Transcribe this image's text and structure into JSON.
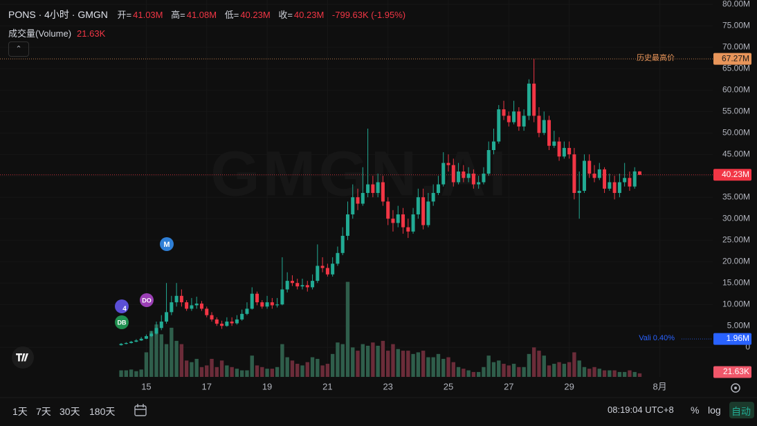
{
  "header": {
    "title": "PONS · 4小时 · GMGN",
    "open_label": "开=",
    "open": "41.03M",
    "high_label": "高=",
    "high": "41.08M",
    "low_label": "低=",
    "low": "40.23M",
    "close_label": "收=",
    "close": "40.23M",
    "change": "-799.63K (-1.95%)",
    "volume_title": "成交量(Volume)",
    "volume_value": "21.63K"
  },
  "watermark": "GMGN.AI",
  "events": [
    {
      "label": "M"
    },
    {
      "label": "DO"
    },
    {
      "label": "4"
    },
    {
      "label": "DB"
    }
  ],
  "toolbar": {
    "ranges": [
      "1天",
      "7天",
      "30天",
      "180天"
    ],
    "clock": "08:19:04 UTC+8",
    "percent": "%",
    "log": "log",
    "auto": "自动"
  },
  "chart_data": {
    "type": "candlestick",
    "colors": {
      "up": "#22ab94",
      "down": "#f23645",
      "volume_up": "#2f5e4b",
      "volume_down": "#6b2c39"
    },
    "xlim": [
      -24.06,
      117.5
    ],
    "xticks": [
      {
        "value": 5,
        "label": "15"
      },
      17,
      {
        "value": 29,
        "label": "19"
      },
      {
        "value": 41,
        "label": "21"
      },
      {
        "value": 53,
        "label": "23"
      },
      {
        "value": 65,
        "label": "25"
      },
      {
        "value": 77,
        "label": "27"
      },
      {
        "value": 89,
        "label": "29"
      },
      {
        "value": 107,
        "label": "8月"
      }
    ],
    "ylim": [
      -6.9,
      81
    ],
    "yticks": [
      0,
      {
        "value": 5,
        "label": "5.00M"
      },
      {
        "value": 10,
        "label": "10.00M"
      },
      {
        "value": 15,
        "label": "15.00M"
      },
      {
        "value": 20,
        "label": "20.00M"
      },
      {
        "value": 25,
        "label": "25.00M"
      },
      {
        "value": 30,
        "label": "30.00M"
      },
      {
        "value": 35,
        "label": "35.00M"
      },
      {
        "value": 40,
        "label": "40.00M"
      },
      {
        "value": 45,
        "label": "45.00M"
      },
      {
        "value": 50,
        "label": "50.00M"
      },
      {
        "value": 55,
        "label": "55.00M"
      },
      {
        "value": 60,
        "label": "60.00M"
      },
      {
        "value": 65,
        "label": "65.00M"
      },
      {
        "value": 70,
        "label": "70.00M"
      },
      {
        "value": 75,
        "label": "75.00M"
      },
      {
        "value": 80,
        "label": "80.00M"
      }
    ],
    "volume_ylim": [
      0,
      2300
    ],
    "grid": true,
    "open": [
      0.5,
      0.8,
      1.0,
      1.3,
      1.6,
      2.0,
      2.6,
      3.2,
      4.5,
      6.0,
      8.2,
      10.5,
      12.0,
      10.5,
      9.0,
      9.8,
      10.2,
      9.0,
      7.5,
      6.5,
      5.5,
      5.0,
      6.0,
      5.6,
      6.5,
      7.8,
      9.0,
      12.5,
      10.5,
      9.5,
      10.5,
      9.8,
      10.0,
      13.5,
      15.5,
      15.0,
      14.2,
      14.5,
      14.0,
      15.5,
      19.0,
      18.5,
      17.0,
      19.5,
      22.0,
      26.0,
      31.0,
      35.0,
      33.5,
      36.0,
      38.0,
      36.0,
      38.5,
      34.0,
      30.0,
      29.0,
      31.0,
      28.0,
      27.0,
      31.0,
      35.0,
      28.5,
      34.0,
      36.0,
      38.0,
      43.0,
      42.5,
      38.5,
      41.0,
      39.5,
      40.5,
      38.0,
      38.5,
      40.5,
      46.0,
      48.0,
      55.5,
      54.0,
      52.5,
      55.0,
      51.5,
      54.0,
      61.5,
      54.0,
      50.0,
      53.0,
      47.0,
      48.0,
      44.5,
      46.5,
      45.0,
      36.0,
      36.5,
      43.5,
      40.5,
      39.5,
      41.5,
      37.0,
      38.5,
      36.0,
      38.5,
      39.5,
      37.5,
      41.03
    ],
    "high": [
      1.0,
      1.2,
      1.5,
      1.9,
      2.4,
      3.0,
      3.8,
      6.0,
      7.5,
      15.0,
      12.0,
      15.0,
      13.5,
      11.0,
      11.5,
      11.8,
      10.8,
      9.5,
      8.2,
      7.0,
      6.2,
      7.0,
      7.0,
      7.5,
      8.8,
      10.5,
      14.0,
      13.0,
      11.0,
      12.0,
      11.5,
      11.5,
      21.0,
      17.5,
      16.8,
      16.0,
      16.0,
      15.5,
      17.0,
      24.0,
      21.0,
      19.5,
      21.0,
      23.5,
      28.0,
      34.0,
      38.0,
      37.0,
      42.0,
      51.0,
      40.0,
      40.5,
      40.0,
      35.0,
      32.0,
      33.0,
      32.5,
      30.0,
      32.5,
      37.0,
      37.0,
      36.0,
      38.0,
      40.0,
      45.5,
      45.0,
      44.0,
      43.0,
      42.5,
      42.0,
      41.5,
      40.0,
      42.0,
      48.0,
      51.0,
      56.5,
      57.5,
      55.0,
      57.5,
      56.0,
      55.5,
      62.5,
      67.27,
      56.0,
      55.0,
      54.0,
      50.5,
      49.0,
      48.0,
      48.0,
      46.5,
      41.0,
      45.0,
      45.0,
      42.5,
      43.0,
      42.0,
      40.5,
      40.0,
      40.5,
      43.0,
      41.0,
      42.0,
      41.08
    ],
    "low": [
      0.4,
      0.7,
      0.9,
      1.2,
      1.5,
      1.9,
      2.4,
      3.0,
      4.0,
      5.5,
      7.5,
      9.5,
      9.5,
      8.5,
      8.5,
      9.0,
      8.5,
      7.0,
      6.0,
      5.0,
      4.3,
      4.8,
      5.0,
      5.3,
      6.2,
      7.5,
      8.8,
      9.8,
      9.0,
      9.0,
      9.0,
      9.3,
      9.8,
      12.8,
      14.3,
      13.5,
      13.5,
      13.0,
      13.5,
      15.0,
      17.5,
      16.5,
      16.5,
      19.0,
      21.5,
      25.0,
      30.0,
      32.0,
      33.0,
      35.0,
      35.0,
      35.0,
      33.0,
      28.5,
      27.0,
      28.0,
      26.5,
      25.5,
      26.5,
      30.0,
      27.5,
      28.0,
      33.0,
      35.5,
      37.5,
      41.0,
      37.5,
      38.0,
      38.5,
      38.5,
      37.0,
      37.0,
      38.0,
      40.0,
      45.0,
      47.5,
      53.0,
      51.5,
      52.0,
      50.5,
      50.5,
      53.0,
      52.5,
      49.0,
      49.5,
      46.0,
      46.5,
      43.5,
      44.0,
      44.0,
      34.5,
      30.0,
      36.0,
      39.5,
      38.5,
      39.0,
      36.0,
      36.5,
      34.5,
      35.0,
      37.5,
      36.5,
      37.0,
      40.23
    ],
    "close": [
      0.8,
      1.0,
      1.3,
      1.6,
      2.0,
      2.6,
      3.2,
      4.5,
      6.0,
      8.2,
      10.5,
      12.0,
      10.5,
      9.0,
      9.8,
      10.2,
      9.0,
      7.5,
      6.5,
      5.5,
      5.0,
      6.0,
      5.6,
      6.5,
      7.8,
      9.0,
      12.5,
      10.5,
      9.5,
      10.5,
      9.8,
      10.0,
      13.5,
      15.5,
      15.0,
      14.2,
      14.5,
      14.0,
      15.5,
      19.0,
      18.5,
      17.0,
      19.5,
      22.0,
      26.0,
      31.0,
      35.0,
      33.5,
      36.0,
      38.0,
      36.0,
      38.5,
      34.0,
      30.0,
      29.0,
      31.0,
      28.0,
      27.0,
      31.0,
      35.0,
      28.5,
      34.0,
      36.0,
      38.0,
      43.0,
      42.5,
      38.5,
      41.0,
      39.5,
      40.5,
      38.0,
      38.5,
      40.5,
      46.0,
      48.0,
      55.5,
      54.0,
      52.5,
      55.0,
      51.5,
      54.0,
      61.5,
      54.0,
      50.0,
      53.0,
      47.0,
      48.0,
      44.5,
      46.5,
      45.0,
      36.0,
      36.5,
      43.5,
      40.5,
      39.5,
      41.5,
      37.0,
      38.5,
      36.0,
      38.5,
      39.5,
      37.5,
      41.03,
      40.23
    ],
    "volume": [
      40,
      40,
      45,
      35,
      45,
      150,
      280,
      320,
      260,
      200,
      300,
      220,
      200,
      100,
      90,
      110,
      60,
      70,
      110,
      60,
      100,
      70,
      60,
      50,
      40,
      40,
      130,
      70,
      60,
      50,
      50,
      60,
      200,
      120,
      100,
      80,
      70,
      90,
      120,
      110,
      70,
      80,
      140,
      210,
      200,
      580,
      180,
      160,
      200,
      190,
      210,
      190,
      220,
      160,
      200,
      170,
      160,
      160,
      140,
      150,
      160,
      120,
      120,
      140,
      110,
      120,
      90,
      60,
      50,
      40,
      30,
      30,
      60,
      130,
      90,
      100,
      80,
      70,
      80,
      60,
      60,
      140,
      180,
      160,
      130,
      70,
      80,
      90,
      80,
      90,
      150,
      100,
      60,
      50,
      60,
      50,
      40,
      40,
      40,
      30,
      30,
      40,
      30,
      21.63
    ],
    "price_lines": [
      {
        "label": "历史最高价",
        "value": 67.27,
        "value_label": "67.27M",
        "color": "#e8955a"
      },
      {
        "value": 40.23,
        "value_label": "40.23M",
        "color": "#f23645"
      },
      {
        "label": "Vali 0.40%",
        "value": 1.96,
        "value_label": "1.96M",
        "color": "#2962ff"
      }
    ]
  }
}
